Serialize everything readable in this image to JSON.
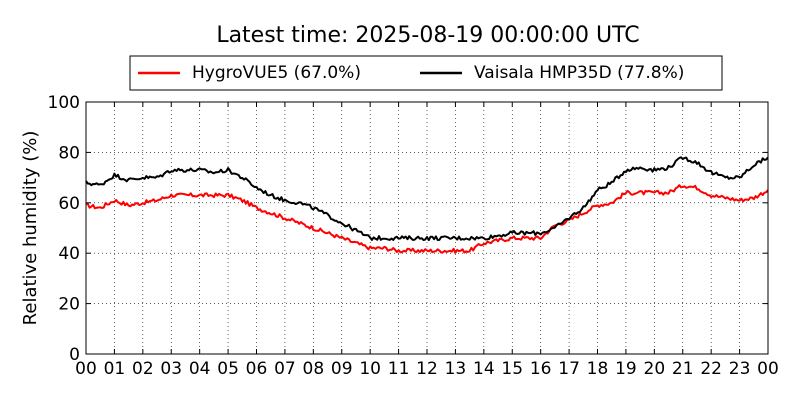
{
  "chart_data": {
    "type": "line",
    "title": "Latest time: 2025-08-19 00:00:00 UTC",
    "xlabel": "",
    "ylabel": "Relative humidity (%)",
    "xlim": [
      0,
      24
    ],
    "ylim": [
      0,
      100
    ],
    "yticks": [
      0,
      20,
      40,
      60,
      80,
      100
    ],
    "xticks": [
      "00",
      "01",
      "02",
      "03",
      "04",
      "05",
      "06",
      "07",
      "08",
      "09",
      "10",
      "11",
      "12",
      "13",
      "14",
      "15",
      "16",
      "17",
      "18",
      "19",
      "20",
      "21",
      "22",
      "23",
      "00"
    ],
    "grid": true,
    "legend_position": "top",
    "x": [
      0,
      0.5,
      1,
      1.5,
      2,
      2.5,
      3,
      3.5,
      4,
      4.5,
      5,
      5.5,
      6,
      6.5,
      7,
      7.5,
      8,
      8.5,
      9,
      9.5,
      10,
      10.5,
      11,
      11.5,
      12,
      12.5,
      13,
      13.5,
      14,
      14.5,
      15,
      15.5,
      16,
      16.5,
      17,
      17.5,
      18,
      18.5,
      19,
      19.5,
      20,
      20.5,
      21,
      21.5,
      22,
      22.5,
      23,
      23.5,
      24
    ],
    "series": [
      {
        "name": "HygroVUE5 (67.0%)",
        "color": "#ff0000",
        "values": [
          59,
          58,
          61,
          59,
          60,
          61,
          63,
          63,
          63,
          63,
          63,
          61,
          58,
          56,
          54,
          52,
          50,
          48,
          46,
          44,
          42,
          42,
          41,
          41,
          41,
          41,
          41,
          41,
          44,
          45,
          46,
          46,
          46,
          51,
          53,
          56,
          59,
          60,
          64,
          64,
          64,
          64,
          67,
          66,
          63,
          62,
          61,
          62,
          65
        ]
      },
      {
        "name": "Vaisala HMP35D (77.8%)",
        "color": "#000000",
        "values": [
          68,
          67,
          71,
          69,
          70,
          70,
          73,
          73,
          73,
          72,
          73,
          70,
          66,
          63,
          61,
          60,
          58,
          55,
          52,
          49,
          46,
          46,
          46,
          46,
          46,
          46,
          46,
          46,
          46,
          47,
          48,
          48,
          48,
          50,
          54,
          58,
          65,
          68,
          73,
          74,
          73,
          74,
          78,
          76,
          72,
          70,
          70,
          75,
          78
        ]
      }
    ]
  }
}
